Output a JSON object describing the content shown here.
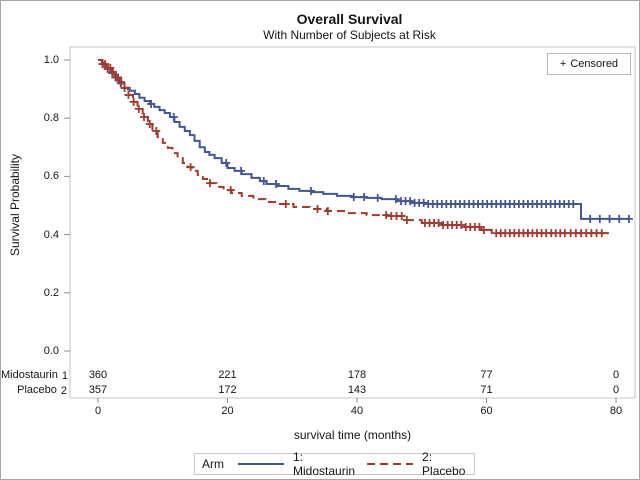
{
  "title": "Overall Survival",
  "subtitle": "With Number of Subjects at Risk",
  "censored_legend": {
    "marker": "+",
    "label": "Censored"
  },
  "axes": {
    "x": {
      "label": "survival time (months)",
      "ticks": [
        {
          "label": "0",
          "value": 0
        },
        {
          "label": "20",
          "value": 20
        },
        {
          "label": "40",
          "value": 40
        },
        {
          "label": "60",
          "value": 60
        },
        {
          "label": "80",
          "value": 80
        }
      ]
    },
    "y": {
      "label": "Survival Probability",
      "ticks": [
        {
          "label": "1.0",
          "value": 1.0
        },
        {
          "label": "0.8",
          "value": 0.8
        },
        {
          "label": "0.6",
          "value": 0.6
        },
        {
          "label": "0.4",
          "value": 0.4
        },
        {
          "label": "0.2",
          "value": 0.2
        },
        {
          "label": "0.0",
          "value": 0.0
        }
      ]
    }
  },
  "legend": {
    "title": "Arm"
  },
  "colors": {
    "arm1": "#445694",
    "arm2": "#A23A2E",
    "frame": "#c6c6c6",
    "tick": "#8e8e8e",
    "text": "#161616"
  },
  "chart_data": {
    "type": "line",
    "subtype": "kaplan-meier-step",
    "title": "Overall Survival",
    "subtitle": "With Number of Subjects at Risk",
    "xlabel": "survival time (months)",
    "ylabel": "Survival Probability",
    "xlim": [
      0,
      80
    ],
    "ylim": [
      0.0,
      1.0
    ],
    "x_ticks": [
      0,
      20,
      40,
      60,
      80
    ],
    "y_ticks": [
      0.0,
      0.2,
      0.4,
      0.6,
      0.8,
      1.0
    ],
    "grid": false,
    "legend_position": "bottom",
    "censored_marker": "+",
    "series": [
      {
        "name": "1: Midostaurin",
        "color": "#445694",
        "line_style": "solid",
        "points": [
          [
            0,
            1
          ],
          [
            0.6,
            0.99
          ],
          [
            1,
            0.98
          ],
          [
            1.5,
            0.969
          ],
          [
            2.1,
            0.955
          ],
          [
            2.7,
            0.94
          ],
          [
            3.3,
            0.92
          ],
          [
            4.1,
            0.904
          ],
          [
            4.9,
            0.894
          ],
          [
            5.7,
            0.883
          ],
          [
            6.4,
            0.87
          ],
          [
            7.2,
            0.859
          ],
          [
            8,
            0.849
          ],
          [
            8.7,
            0.839
          ],
          [
            9.5,
            0.828
          ],
          [
            10.3,
            0.818
          ],
          [
            11.1,
            0.804
          ],
          [
            11.8,
            0.787
          ],
          [
            12.6,
            0.77
          ],
          [
            13.4,
            0.756
          ],
          [
            14.2,
            0.742
          ],
          [
            14.9,
            0.722
          ],
          [
            15.7,
            0.7
          ],
          [
            16.5,
            0.684
          ],
          [
            17.2,
            0.674
          ],
          [
            18,
            0.663
          ],
          [
            19.1,
            0.646
          ],
          [
            20,
            0.629
          ],
          [
            21.1,
            0.619
          ],
          [
            22.2,
            0.608
          ],
          [
            23.7,
            0.595
          ],
          [
            25,
            0.584
          ],
          [
            26,
            0.574
          ],
          [
            27.6,
            0.567
          ],
          [
            29.4,
            0.557
          ],
          [
            31.1,
            0.55
          ],
          [
            33,
            0.546
          ],
          [
            34.8,
            0.54
          ],
          [
            36.9,
            0.533
          ],
          [
            39.2,
            0.529
          ],
          [
            41.5,
            0.526
          ],
          [
            43.8,
            0.522
          ],
          [
            46.1,
            0.515
          ],
          [
            48.4,
            0.509
          ],
          [
            50.8,
            0.505
          ],
          [
            74.6,
            0.454
          ],
          [
            82,
            0.454
          ]
        ],
        "censor_times": [
          1.5,
          2.2,
          2.9,
          3.5,
          8.2,
          11.7,
          19.8,
          22.1,
          25.6,
          27.5,
          32.9,
          39.5,
          41.1,
          43.2,
          46,
          46.8,
          47.5,
          48.2,
          48.9,
          49.6,
          50.3,
          51,
          51.7,
          52.4,
          53.1,
          53.8,
          54.5,
          55.2,
          55.9,
          56.6,
          57.3,
          58,
          58.7,
          59.4,
          60.1,
          60.8,
          61.5,
          62.2,
          62.9,
          63.6,
          64.3,
          65,
          65.7,
          66.4,
          67.1,
          67.8,
          68.5,
          69.2,
          69.9,
          70.6,
          71.3,
          72,
          72.7,
          73.4,
          76,
          77.5,
          79,
          80.5,
          82
        ]
      },
      {
        "name": "2: Placebo",
        "color": "#A23A2E",
        "line_style": "dashed",
        "points": [
          [
            0,
            1
          ],
          [
            0.7,
            0.986
          ],
          [
            1.3,
            0.973
          ],
          [
            2,
            0.959
          ],
          [
            2.6,
            0.94
          ],
          [
            3.2,
            0.924
          ],
          [
            3.8,
            0.904
          ],
          [
            4.6,
            0.88
          ],
          [
            5.4,
            0.856
          ],
          [
            6.1,
            0.832
          ],
          [
            6.9,
            0.804
          ],
          [
            7.7,
            0.78
          ],
          [
            8.4,
            0.756
          ],
          [
            9.2,
            0.735
          ],
          [
            10,
            0.715
          ],
          [
            10.8,
            0.698
          ],
          [
            11.5,
            0.68
          ],
          [
            12.3,
            0.663
          ],
          [
            13.1,
            0.646
          ],
          [
            13.8,
            0.632
          ],
          [
            14.6,
            0.619
          ],
          [
            15.4,
            0.605
          ],
          [
            16.2,
            0.591
          ],
          [
            17.2,
            0.577
          ],
          [
            18.3,
            0.564
          ],
          [
            19.4,
            0.553
          ],
          [
            20.6,
            0.543
          ],
          [
            22.2,
            0.533
          ],
          [
            24,
            0.522
          ],
          [
            25.9,
            0.512
          ],
          [
            27.9,
            0.505
          ],
          [
            30.2,
            0.495
          ],
          [
            32.7,
            0.488
          ],
          [
            35.3,
            0.481
          ],
          [
            38.4,
            0.474
          ],
          [
            41.5,
            0.467
          ],
          [
            44.9,
            0.464
          ],
          [
            47.7,
            0.45
          ],
          [
            50,
            0.44
          ],
          [
            53.1,
            0.433
          ],
          [
            56.2,
            0.426
          ],
          [
            59.2,
            0.416
          ],
          [
            60.8,
            0.405
          ],
          [
            78.9,
            0.405
          ]
        ],
        "censor_times": [
          0.7,
          1.1,
          1.5,
          1.9,
          2.3,
          2.7,
          3.1,
          3.6,
          4.1,
          4.7,
          5.5,
          6.3,
          7.1,
          8,
          9,
          14.3,
          17.3,
          20.5,
          29,
          33.9,
          35.5,
          44.5,
          45.3,
          46.1,
          46.9,
          47.7,
          50.5,
          51.2,
          51.9,
          52.6,
          53.3,
          54,
          54.7,
          55.4,
          56.1,
          56.8,
          57.5,
          58.2,
          58.9,
          59.6,
          61.5,
          62.2,
          62.9,
          63.6,
          64.3,
          65,
          65.7,
          66.4,
          67.1,
          67.8,
          68.5,
          69.2,
          70,
          70.7,
          71.4,
          72.1,
          73,
          73.8,
          74.6,
          75.4,
          76.2,
          77,
          77.8
        ]
      }
    ],
    "at_risk": {
      "times": [
        0,
        20,
        40,
        60,
        80
      ],
      "groups": [
        {
          "label": "Midostaurin",
          "arm": "1",
          "counts": [
            "360",
            "221",
            "178",
            "77",
            "0"
          ]
        },
        {
          "label": "Placebo",
          "arm": "2",
          "counts": [
            "357",
            "172",
            "143",
            "71",
            "0"
          ]
        }
      ]
    }
  }
}
